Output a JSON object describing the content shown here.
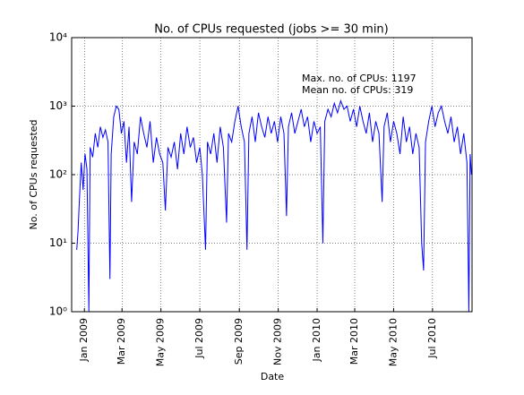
{
  "chart_data": {
    "type": "line",
    "title": "No. of CPUs requested (jobs >= 30 min)",
    "x_label": "Date",
    "y_label": "No. of CPUs requested",
    "annotations": [
      "Max. no. of CPUs: 1197",
      "Mean no. of CPUs: 319"
    ],
    "yscale": "log",
    "grid": true,
    "xlim": [
      "2008-12-12",
      "2010-09-01"
    ],
    "ylim": [
      1,
      10000
    ],
    "xticks": [
      {
        "value": "2009-01",
        "label": "Jan 2009"
      },
      {
        "value": "2009-03",
        "label": "Mar 2009"
      },
      {
        "value": "2009-05",
        "label": "May 2009"
      },
      {
        "value": "2009-07",
        "label": "Jul 2009"
      },
      {
        "value": "2009-09",
        "label": "Sep 2009"
      },
      {
        "value": "2009-11",
        "label": "Nov 2009"
      },
      {
        "value": "2010-01",
        "label": "Jan 2010"
      },
      {
        "value": "2010-03",
        "label": "Mar 2010"
      },
      {
        "value": "2010-05",
        "label": "May 2010"
      },
      {
        "value": "2010-07",
        "label": "Jul 2010"
      }
    ],
    "yticks": [
      {
        "value": 1,
        "label": "10⁰"
      },
      {
        "value": 10,
        "label": "10¹"
      },
      {
        "value": 100,
        "label": "10²"
      },
      {
        "value": 1000,
        "label": "10³"
      },
      {
        "value": 10000,
        "label": "10⁴"
      }
    ],
    "x": [
      "2008-12-20",
      "2008-12-22",
      "2008-12-24",
      "2008-12-27",
      "2008-12-30",
      "2009-01-02",
      "2009-01-05",
      "2009-01-08",
      "2009-01-10",
      "2009-01-14",
      "2009-01-18",
      "2009-01-22",
      "2009-01-26",
      "2009-01-30",
      "2009-02-03",
      "2009-02-07",
      "2009-02-10",
      "2009-02-12",
      "2009-02-16",
      "2009-02-20",
      "2009-02-24",
      "2009-02-28",
      "2009-03-04",
      "2009-03-08",
      "2009-03-12",
      "2009-03-16",
      "2009-03-20",
      "2009-03-25",
      "2009-03-30",
      "2009-04-04",
      "2009-04-09",
      "2009-04-14",
      "2009-04-19",
      "2009-04-24",
      "2009-04-29",
      "2009-05-04",
      "2009-05-08",
      "2009-05-12",
      "2009-05-17",
      "2009-05-22",
      "2009-05-27",
      "2009-06-01",
      "2009-06-06",
      "2009-06-11",
      "2009-06-16",
      "2009-06-21",
      "2009-06-26",
      "2009-07-01",
      "2009-07-05",
      "2009-07-10",
      "2009-07-13",
      "2009-07-18",
      "2009-07-23",
      "2009-07-28",
      "2009-08-02",
      "2009-08-07",
      "2009-08-12",
      "2009-08-15",
      "2009-08-20",
      "2009-08-25",
      "2009-08-30",
      "2009-09-04",
      "2009-09-09",
      "2009-09-13",
      "2009-09-16",
      "2009-09-21",
      "2009-09-26",
      "2009-10-01",
      "2009-10-06",
      "2009-10-11",
      "2009-10-16",
      "2009-10-21",
      "2009-10-26",
      "2009-10-31",
      "2009-11-05",
      "2009-11-10",
      "2009-11-14",
      "2009-11-17",
      "2009-11-22",
      "2009-11-27",
      "2009-12-02",
      "2009-12-07",
      "2009-12-12",
      "2009-12-17",
      "2009-12-22",
      "2009-12-27",
      "2010-01-01",
      "2010-01-06",
      "2010-01-10",
      "2010-01-13",
      "2010-01-18",
      "2010-01-23",
      "2010-01-28",
      "2010-02-02",
      "2010-02-07",
      "2010-02-12",
      "2010-02-17",
      "2010-02-22",
      "2010-02-27",
      "2010-03-04",
      "2010-03-09",
      "2010-03-14",
      "2010-03-19",
      "2010-03-24",
      "2010-03-29",
      "2010-04-03",
      "2010-04-08",
      "2010-04-13",
      "2010-04-16",
      "2010-04-21",
      "2010-04-26",
      "2010-05-01",
      "2010-05-06",
      "2010-05-11",
      "2010-05-16",
      "2010-05-21",
      "2010-05-26",
      "2010-05-31",
      "2010-06-05",
      "2010-06-10",
      "2010-06-14",
      "2010-06-17",
      "2010-06-20",
      "2010-06-25",
      "2010-06-30",
      "2010-07-05",
      "2010-07-10",
      "2010-07-15",
      "2010-07-20",
      "2010-07-25",
      "2010-07-30",
      "2010-08-04",
      "2010-08-09",
      "2010-08-14",
      "2010-08-19",
      "2010-08-24",
      "2010-08-27",
      "2010-08-29",
      "2010-08-31"
    ],
    "series": [
      {
        "name": "CPUs requested",
        "color": "#0000ff",
        "values": [
          8,
          15,
          40,
          150,
          60,
          200,
          120,
          1,
          250,
          180,
          400,
          250,
          500,
          350,
          450,
          300,
          3,
          200,
          700,
          1000,
          900,
          400,
          600,
          150,
          500,
          40,
          300,
          200,
          700,
          400,
          250,
          600,
          150,
          350,
          200,
          150,
          30,
          250,
          180,
          300,
          120,
          400,
          200,
          500,
          250,
          350,
          150,
          250,
          100,
          8,
          300,
          200,
          400,
          150,
          500,
          250,
          20,
          400,
          300,
          600,
          1000,
          500,
          300,
          8,
          400,
          700,
          300,
          800,
          500,
          350,
          700,
          400,
          600,
          300,
          700,
          400,
          25,
          500,
          800,
          400,
          600,
          900,
          500,
          700,
          300,
          600,
          400,
          500,
          10,
          600,
          900,
          700,
          1100,
          800,
          1197,
          900,
          1000,
          600,
          900,
          500,
          1000,
          600,
          400,
          800,
          300,
          600,
          400,
          40,
          500,
          800,
          300,
          600,
          400,
          200,
          700,
          300,
          500,
          200,
          400,
          250,
          10,
          4,
          300,
          600,
          1000,
          500,
          800,
          1000,
          600,
          400,
          700,
          300,
          500,
          200,
          400,
          150,
          1,
          200,
          100
        ]
      }
    ]
  }
}
